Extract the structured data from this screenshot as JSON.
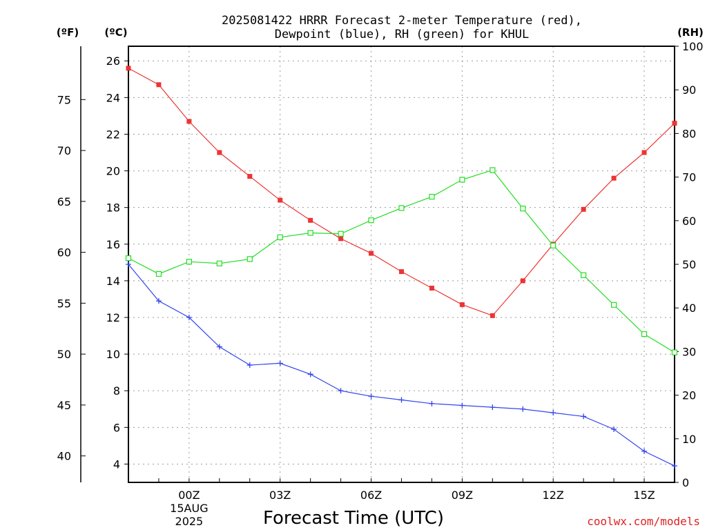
{
  "title_line1": "2025081422 HRRR Forecast 2-meter Temperature (red),",
  "title_line2": "Dewpoint (blue), RH (green) for KHUL",
  "credit": "coolwx.com/models",
  "colors": {
    "temperature": "#ee3333",
    "dewpoint": "#3344ee",
    "rh": "#22dd22",
    "credit": "#dd2222"
  },
  "chart_data": {
    "type": "line",
    "title": "2025081422 HRRR Forecast 2-meter Temperature (red), Dewpoint (blue), RH (green) for KHUL",
    "xlabel": "Forecast Time (UTC)",
    "x": [
      "22Z",
      "23Z",
      "00Z",
      "01Z",
      "02Z",
      "03Z",
      "04Z",
      "05Z",
      "06Z",
      "07Z",
      "08Z",
      "09Z",
      "10Z",
      "11Z",
      "12Z",
      "13Z",
      "14Z",
      "15Z",
      "16Z"
    ],
    "x_ticks": [
      {
        "at": "00Z",
        "label": "00Z",
        "sub1": "15AUG",
        "sub2": "2025"
      },
      {
        "at": "03Z",
        "label": "03Z"
      },
      {
        "at": "06Z",
        "label": "06Z"
      },
      {
        "at": "09Z",
        "label": "09Z"
      },
      {
        "at": "12Z",
        "label": "12Z"
      },
      {
        "at": "15Z",
        "label": "15Z"
      }
    ],
    "axes": {
      "celsius": {
        "label": "(ºC)",
        "range": [
          3,
          26.8
        ],
        "ticks": [
          4,
          6,
          8,
          10,
          12,
          14,
          16,
          18,
          20,
          22,
          24,
          26
        ]
      },
      "fahrenheit": {
        "label": "(ºF)",
        "ticks": [
          40,
          45,
          50,
          55,
          60,
          65,
          70,
          75
        ]
      },
      "rh": {
        "label": "(RH)",
        "range": [
          0,
          100
        ],
        "ticks": [
          0,
          10,
          20,
          30,
          40,
          50,
          60,
          70,
          80,
          90,
          100
        ]
      }
    },
    "grid": true,
    "series": [
      {
        "name": "Temperature",
        "axis": "celsius",
        "marker": "filled-square",
        "values": [
          25.6,
          24.7,
          22.7,
          21.0,
          19.7,
          18.4,
          17.3,
          16.3,
          15.5,
          14.5,
          13.6,
          12.7,
          12.1,
          14.0,
          16.0,
          17.9,
          19.6,
          21.0,
          22.6
        ]
      },
      {
        "name": "Dewpoint",
        "axis": "celsius",
        "marker": "plus",
        "values": [
          14.9,
          12.9,
          12.0,
          10.4,
          9.4,
          9.5,
          8.9,
          8.0,
          7.7,
          7.5,
          7.3,
          7.2,
          7.1,
          7.0,
          6.8,
          6.6,
          5.9,
          4.7,
          3.9
        ]
      },
      {
        "name": "RH",
        "axis": "rh",
        "marker": "open-square",
        "values": [
          51.4,
          47.8,
          50.6,
          50.2,
          51.2,
          56.2,
          57.2,
          57.0,
          60.1,
          62.9,
          65.5,
          69.4,
          71.6,
          62.8,
          54.3,
          47.5,
          40.7,
          34.0,
          29.8
        ]
      }
    ]
  }
}
